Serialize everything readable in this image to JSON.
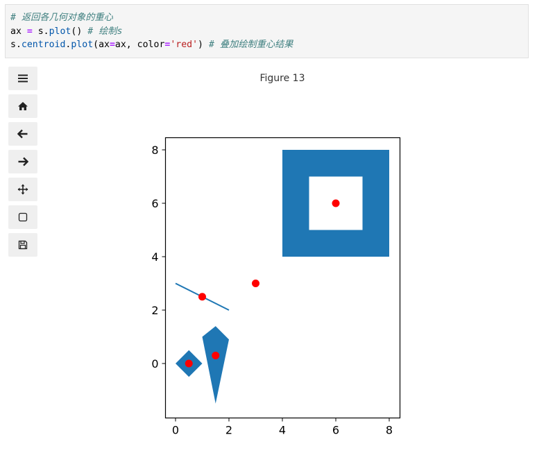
{
  "code": {
    "line1_comment": "# 返回各几何对象的重心",
    "line2": {
      "pre": "ax ",
      "op": "=",
      "mid": " s.",
      "attr": "plot",
      "post": "() ",
      "comment": "# 绘制s"
    },
    "line3": {
      "obj": "s.",
      "attr1": "centroid",
      "dot": ".",
      "attr2": "plot",
      "p1": "(ax",
      "op1": "=",
      "p2": "ax, color",
      "op2": "=",
      "str": "'red'",
      "p3": ") ",
      "comment": "# 叠加绘制重心结果"
    }
  },
  "toolbar": {
    "buttons": [
      {
        "name": "menu-icon"
      },
      {
        "name": "home-icon"
      },
      {
        "name": "back-arrow-icon"
      },
      {
        "name": "forward-arrow-icon"
      },
      {
        "name": "pan-move-icon"
      },
      {
        "name": "zoom-rect-icon"
      },
      {
        "name": "save-icon"
      }
    ]
  },
  "figure": {
    "title": "Figure 13"
  },
  "chart_data": {
    "type": "scatter",
    "title": "",
    "xlabel": "",
    "ylabel": "",
    "xlim": [
      -0.4,
      8.4
    ],
    "ylim": [
      -2.0,
      8.5
    ],
    "xticks": [
      0,
      2,
      4,
      6,
      8
    ],
    "yticks": [
      0,
      2,
      4,
      6,
      8
    ],
    "xtick_labels": [
      "0",
      "2",
      "4",
      "6",
      "8"
    ],
    "ytick_labels": [
      "0",
      "2",
      "4",
      "6",
      "8"
    ],
    "grid": false,
    "geometry_color": "#1f77b4",
    "centroid_color": "#ff0000",
    "geometries": [
      {
        "kind": "polygon",
        "exterior": [
          [
            4,
            4
          ],
          [
            8,
            4
          ],
          [
            8,
            8
          ],
          [
            4,
            8
          ]
        ],
        "hole": [
          [
            5,
            5
          ],
          [
            7,
            5
          ],
          [
            7,
            7
          ],
          [
            5,
            7
          ]
        ]
      },
      {
        "kind": "polygon",
        "exterior": [
          [
            0,
            0
          ],
          [
            0.5,
            0.5
          ],
          [
            1,
            0
          ],
          [
            0.5,
            -0.5
          ]
        ]
      },
      {
        "kind": "polygon",
        "exterior": [
          [
            1.5,
            1.4
          ],
          [
            2,
            0.9
          ],
          [
            1.5,
            -1.5
          ],
          [
            1,
            1.0
          ]
        ]
      },
      {
        "kind": "line",
        "coords": [
          [
            0,
            3
          ],
          [
            2,
            2
          ]
        ]
      },
      {
        "kind": "point",
        "coords": [
          3,
          3
        ]
      }
    ],
    "centroids": [
      [
        6,
        6
      ],
      [
        0.5,
        0
      ],
      [
        1.5,
        0.3
      ],
      [
        1,
        2.5
      ],
      [
        3,
        3
      ]
    ]
  }
}
